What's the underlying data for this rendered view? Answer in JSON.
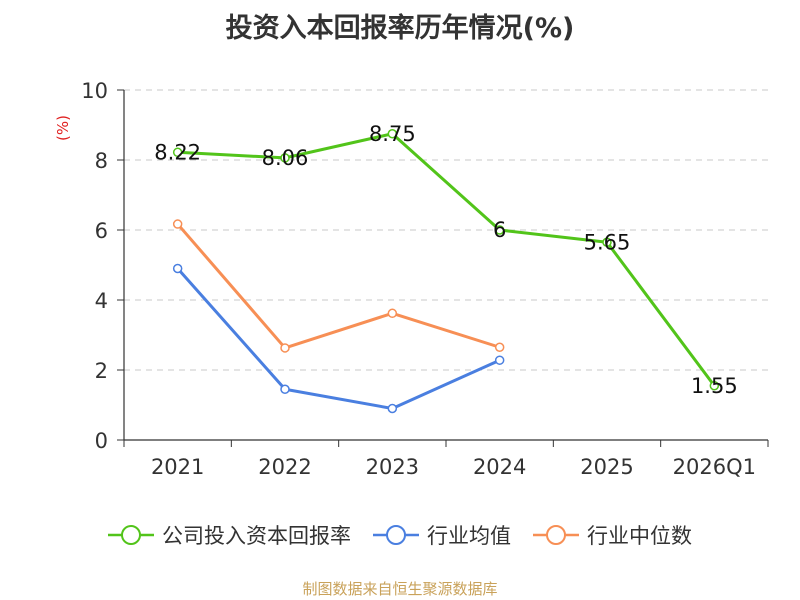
{
  "chart_data": {
    "type": "line",
    "title": "投资入本回报率历年情况(%)",
    "ylabel": "(%)",
    "categories": [
      "2021",
      "2022",
      "2023",
      "2024",
      "2025",
      "2026Q1"
    ],
    "ylim": [
      0,
      10
    ],
    "yticks": [
      0,
      2,
      4,
      6,
      8,
      10
    ],
    "grid": true,
    "legend_position": "bottom",
    "series": [
      {
        "name": "公司投入资本回报率",
        "color": "#52c41a",
        "values": [
          8.22,
          8.06,
          8.75,
          6,
          5.65,
          1.55
        ],
        "labels": [
          "8.22",
          "8.06",
          "8.75",
          "6",
          "5.65",
          "1.55"
        ]
      },
      {
        "name": "行业均值",
        "color": "#4a7fe0",
        "values": [
          4.9,
          1.45,
          0.9,
          2.28,
          null,
          null
        ]
      },
      {
        "name": "行业中位数",
        "color": "#f78f55",
        "values": [
          6.17,
          2.63,
          3.62,
          2.65,
          null,
          null
        ]
      }
    ]
  },
  "source": "制图数据来自恒生聚源数据库"
}
